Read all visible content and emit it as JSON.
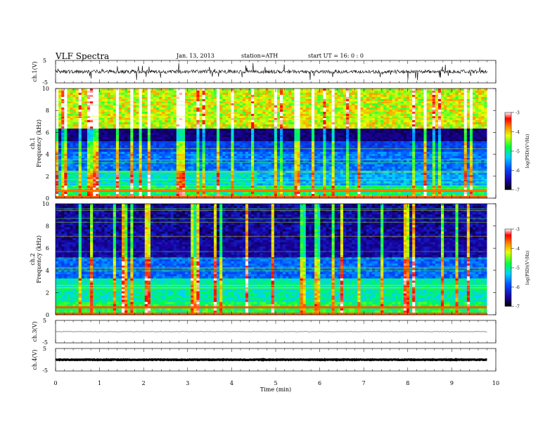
{
  "header": {
    "title": "VLF Spectra",
    "date": "Jan. 13, 2013",
    "station": "station=ATH",
    "start": "start  UT =   16: 0  : 0"
  },
  "chart_data": [
    {
      "type": "line",
      "panel": "ch1-waveform",
      "ylabel": "ch.1(V)",
      "ylim": [
        -5,
        5
      ],
      "yticks": [
        "5",
        "-5"
      ],
      "x": [
        0,
        9.8
      ],
      "baseline": 0
    },
    {
      "type": "heatmap",
      "panel": "ch1-spectrogram",
      "ylabel_top": "ch.1",
      "ylabel": "Frequency  (kHz)",
      "ylim": [
        0,
        10
      ],
      "yticks": [
        "0",
        "2",
        "4",
        "6",
        "8",
        "10"
      ],
      "colorbar": {
        "label": "log(PSD)(V²/Hz)",
        "range": [
          -7,
          -3
        ],
        "ticks": [
          "-3",
          "-4",
          "-5",
          "-6",
          "-7"
        ]
      }
    },
    {
      "type": "heatmap",
      "panel": "ch2-spectrogram",
      "ylabel_top": "ch.2",
      "ylabel": "Frequency  (kHz)",
      "ylim": [
        0,
        10
      ],
      "yticks": [
        "0",
        "2",
        "4",
        "6",
        "8",
        "10"
      ],
      "colorbar": {
        "label": "log(PSD)(V²/Hz)",
        "range": [
          -7,
          -3
        ],
        "ticks": [
          "-3",
          "-4",
          "-5",
          "-6",
          "-7"
        ]
      }
    },
    {
      "type": "line",
      "panel": "ch3-waveform",
      "ylabel": "ch.3(V)",
      "ylim": [
        -5,
        5
      ],
      "yticks": [
        "5",
        "-5"
      ],
      "x": [
        0,
        9.8
      ],
      "baseline": 0
    },
    {
      "type": "line",
      "panel": "ch4-waveform",
      "ylabel": "ch.4(V)",
      "ylim": [
        -5,
        5
      ],
      "yticks": [
        "5",
        "-5"
      ],
      "x": [
        0,
        9.8
      ],
      "baseline": 0
    }
  ],
  "xaxis": {
    "label": "Time  (min)",
    "xlim": [
      0,
      10
    ],
    "ticks": [
      "0",
      "1",
      "2",
      "3",
      "4",
      "5",
      "6",
      "7",
      "8",
      "9",
      "10"
    ]
  }
}
